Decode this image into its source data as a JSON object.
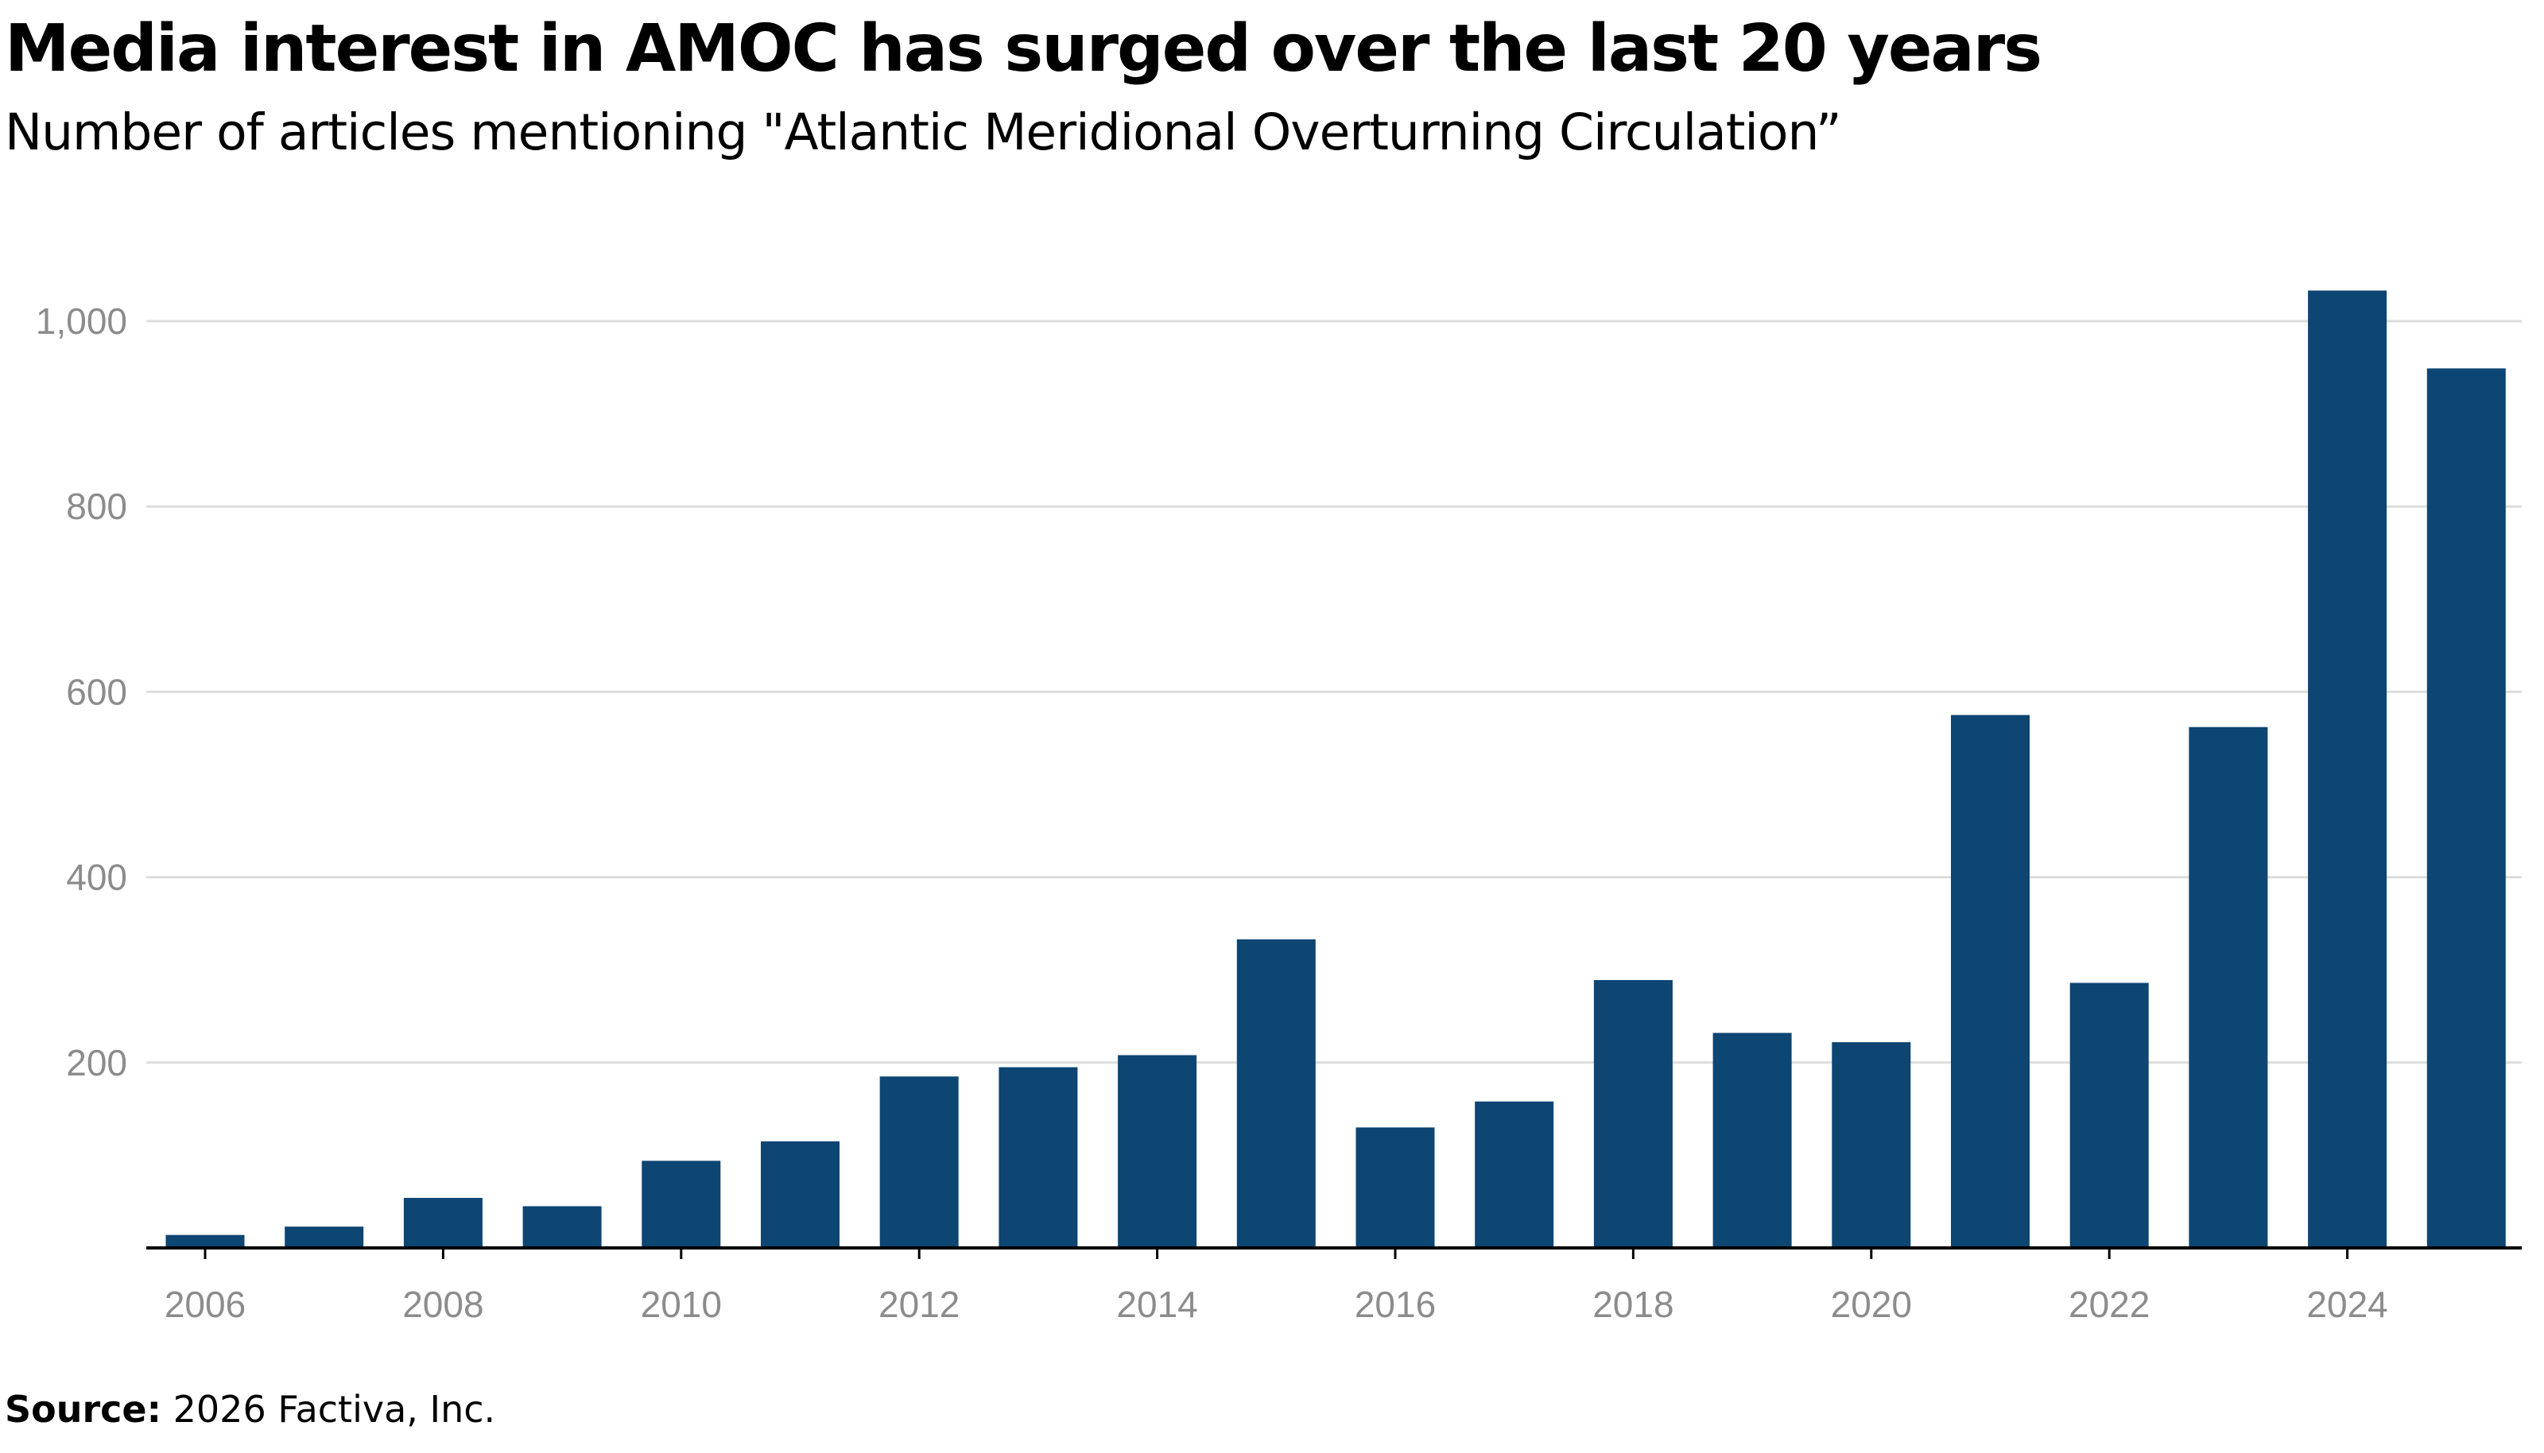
{
  "title": "Media interest in AMOC has surged over the last 20 years",
  "subtitle": "Number of articles mentioning \"Atlantic Meridional Overturning Circulation”",
  "source": {
    "label": "Source:",
    "text": " 2026 Factiva, Inc."
  },
  "colors": {
    "bar": "#0d4573",
    "grid": "#dddddd",
    "axis": "#000000",
    "tick_text": "#8c8c8c"
  },
  "chart_data": {
    "type": "bar",
    "title": "Media interest in AMOC has surged over the last 20 years",
    "subtitle": "Number of articles mentioning \"Atlantic Meridional Overturning Circulation”",
    "categories": [
      "2006",
      "2007",
      "2008",
      "2009",
      "2010",
      "2011",
      "2012",
      "2013",
      "2014",
      "2015",
      "2016",
      "2017",
      "2018",
      "2019",
      "2020",
      "2021",
      "2022",
      "2023",
      "2024",
      "2025"
    ],
    "values": [
      14,
      23,
      54,
      45,
      94,
      115,
      185,
      195,
      208,
      333,
      130,
      158,
      289,
      232,
      222,
      575,
      286,
      562,
      1033,
      949
    ],
    "x_tick_labels": [
      "2006",
      "2008",
      "2010",
      "2012",
      "2014",
      "2016",
      "2018",
      "2020",
      "2022",
      "2024"
    ],
    "y_tick_values": [
      200,
      400,
      600,
      800,
      1000
    ],
    "y_tick_labels": [
      "200",
      "400",
      "600",
      "800",
      "1,000"
    ],
    "ylim": [
      0,
      1060
    ],
    "grid": true,
    "legend": "none"
  }
}
